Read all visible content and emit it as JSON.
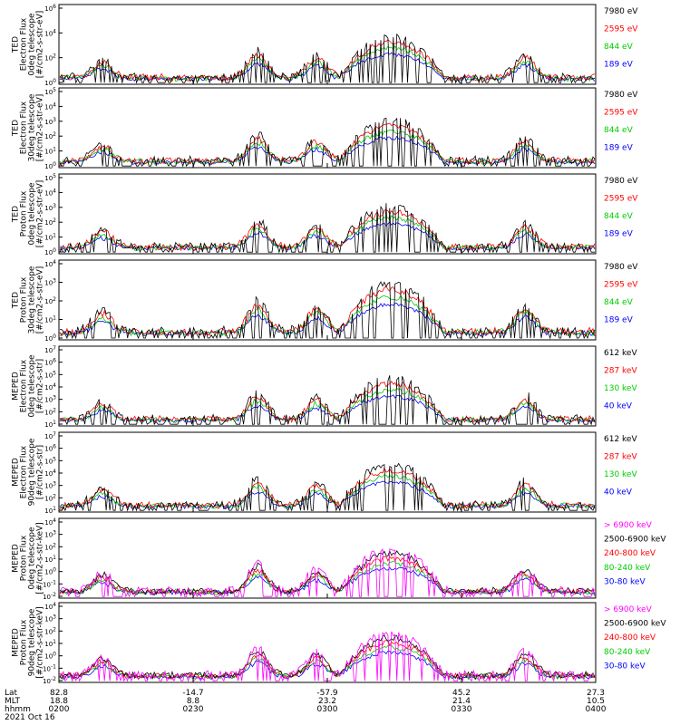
{
  "colors": {
    "blue": "#0000ff",
    "red": "#ff0000",
    "green": "#00cc00",
    "black": "#000000",
    "magenta": "#ff00ff"
  },
  "chart_data": [
    {
      "type": "line",
      "ylabel": [
        "TED",
        "Electron Flux",
        "0deg telescope",
        "[#/cm2-s-str-eV]"
      ],
      "ylim_exp": [
        0,
        6
      ],
      "tick_labels": [
        "10^0",
        "10^2",
        "10^4",
        "10^6"
      ],
      "legend": [
        {
          "label": "7980 eV",
          "color": "black"
        },
        {
          "label": "2595 eV",
          "color": "red"
        },
        {
          "label": "844 eV",
          "color": "green"
        },
        {
          "label": "189 eV",
          "color": "blue"
        }
      ]
    },
    {
      "type": "line",
      "ylabel": [
        "TED",
        "Electron Flux",
        "30deg telescope",
        "[#/cm2-s-str-eV]"
      ],
      "ylim_exp": [
        0,
        6
      ],
      "tick_labels": [
        "10^0",
        "10^1",
        "10^2",
        "10^3",
        "10^4",
        "10^5"
      ],
      "legend": [
        {
          "label": "7980 eV",
          "color": "black"
        },
        {
          "label": "2595 eV",
          "color": "red"
        },
        {
          "label": "844 eV",
          "color": "green"
        },
        {
          "label": "189 eV",
          "color": "blue"
        }
      ]
    },
    {
      "type": "line",
      "ylabel": [
        "TED",
        "Proton Flux",
        "0deg telescope",
        "[#/cm2-s-str-eV]"
      ],
      "ylim_exp": [
        0,
        6
      ],
      "tick_labels": [
        "10^0",
        "10^1",
        "10^2",
        "10^3",
        "10^4",
        "10^5"
      ],
      "legend": [
        {
          "label": "7980 eV",
          "color": "black"
        },
        {
          "label": "2595 eV",
          "color": "red"
        },
        {
          "label": "844 eV",
          "color": "green"
        },
        {
          "label": "189 eV",
          "color": "blue"
        }
      ]
    },
    {
      "type": "line",
      "ylabel": [
        "TED",
        "Proton Flux",
        "30deg telescope",
        "[#/cm2-s-str-eV]"
      ],
      "ylim_exp": [
        0,
        5
      ],
      "tick_labels": [
        "10^0",
        "10^1",
        "10^2",
        "10^3",
        "10^4"
      ],
      "legend": [
        {
          "label": "7980 eV",
          "color": "black"
        },
        {
          "label": "2595 eV",
          "color": "red"
        },
        {
          "label": "844 eV",
          "color": "green"
        },
        {
          "label": "189 eV",
          "color": "blue"
        }
      ]
    },
    {
      "type": "line",
      "ylabel": [
        "MEPED",
        "Electron Flux",
        "0deg telescope",
        "[#/cm2-s-str]"
      ],
      "ylim_exp": [
        1,
        7
      ],
      "tick_labels": [
        "10^1",
        "10^2",
        "10^3",
        "10^4",
        "10^5",
        "10^6",
        "10^7"
      ],
      "legend": [
        {
          "label": "612 keV",
          "color": "black"
        },
        {
          "label": "287 keV",
          "color": "red"
        },
        {
          "label": "130 keV",
          "color": "green"
        },
        {
          "label": "40 keV",
          "color": "blue"
        }
      ]
    },
    {
      "type": "line",
      "ylabel": [
        "MEPED",
        "Electron Flux",
        "90deg telescope",
        "[#/cm2-s-str]"
      ],
      "ylim_exp": [
        1,
        7
      ],
      "tick_labels": [
        "10^1",
        "10^2",
        "10^3",
        "10^4",
        "10^5",
        "10^6",
        "10^7"
      ],
      "legend": [
        {
          "label": "612 keV",
          "color": "black"
        },
        {
          "label": "287 keV",
          "color": "red"
        },
        {
          "label": "130 keV",
          "color": "green"
        },
        {
          "label": "40 keV",
          "color": "blue"
        }
      ]
    },
    {
      "type": "line",
      "ylabel": [
        "MEPED",
        "Proton Flux",
        "0deg telescope",
        "[#/cm2-s-str-keV]"
      ],
      "ylim_exp": [
        -2,
        4
      ],
      "tick_labels": [
        "10^-2",
        "10^-1",
        "10^0",
        "10^1",
        "10^2",
        "10^3",
        "10^4"
      ],
      "legend": [
        {
          "label": "> 6900 keV",
          "color": "magenta"
        },
        {
          "label": "2500-6900 keV",
          "color": "black"
        },
        {
          "label": "240-800 keV",
          "color": "red"
        },
        {
          "label": "80-240 keV",
          "color": "green"
        },
        {
          "label": "30-80 keV",
          "color": "blue"
        }
      ]
    },
    {
      "type": "line",
      "ylabel": [
        "MEPED",
        "Proton Flux",
        "90deg telescope",
        "[#/cm2-s-str-keV]"
      ],
      "ylim_exp": [
        -2,
        4
      ],
      "tick_labels": [
        "10^-2",
        "10^-1",
        "10^0",
        "10^1",
        "10^2",
        "10^3",
        "10^4"
      ],
      "legend": [
        {
          "label": "> 6900 keV",
          "color": "magenta"
        },
        {
          "label": "2500-6900 keV",
          "color": "black"
        },
        {
          "label": "240-800 keV",
          "color": "red"
        },
        {
          "label": "80-240 keV",
          "color": "green"
        },
        {
          "label": "30-80 keV",
          "color": "blue"
        }
      ]
    }
  ],
  "footer": {
    "row_labels": [
      "Lat",
      "MLT",
      "hhmm"
    ],
    "date": "2021 Oct 16",
    "x_time_minutes": [
      0,
      30,
      60,
      90,
      120
    ],
    "columns": [
      {
        "lat": "82.8",
        "mlt": "18.8",
        "hhmm": "0200"
      },
      {
        "lat": "-14.7",
        "mlt": "8.8",
        "hhmm": "0230"
      },
      {
        "lat": "-57.9",
        "mlt": "23.2",
        "hhmm": "0300"
      },
      {
        "lat": "45.2",
        "mlt": "21.4",
        "hhmm": "0330"
      },
      {
        "lat": "27.3",
        "mlt": "10.5",
        "hhmm": "0400"
      }
    ]
  }
}
